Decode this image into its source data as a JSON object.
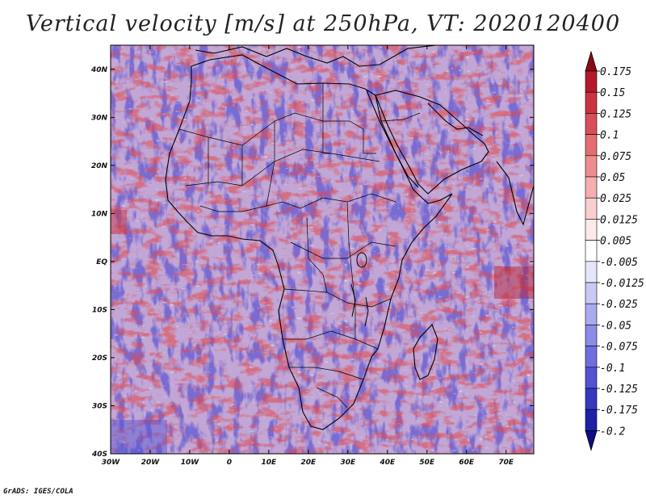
{
  "title": "Vertical velocity [m/s] at 250hPa, VT: 2020120400",
  "credit": "GrADS: IGES/COLA",
  "map": {
    "lon_range": [
      -30,
      77
    ],
    "lat_range": [
      -40,
      45
    ],
    "lon_labels": [
      "30W",
      "20W",
      "10W",
      "0",
      "10E",
      "20E",
      "30E",
      "40E",
      "50E",
      "60E",
      "70E"
    ],
    "lon_values": [
      -30,
      -20,
      -10,
      0,
      10,
      20,
      30,
      40,
      50,
      60,
      70
    ],
    "lat_labels": [
      "40N",
      "30N",
      "20N",
      "10N",
      "EQ",
      "10S",
      "20S",
      "30S",
      "40S"
    ],
    "lat_values": [
      40,
      30,
      20,
      10,
      0,
      -10,
      -20,
      -30,
      -40
    ]
  },
  "colorbar": {
    "labels": [
      "0.175",
      "0.15",
      "0.125",
      "0.1",
      "0.075",
      "0.05",
      "0.025",
      "0.0125",
      "0.005",
      "-0.005",
      "-0.0125",
      "-0.025",
      "-0.05",
      "-0.075",
      "-0.1",
      "-0.125",
      "-0.175",
      "-0.2"
    ],
    "colors": [
      "#8b0a14",
      "#b5192a",
      "#c9333f",
      "#d94f58",
      "#e56e72",
      "#ee8d8f",
      "#f4aeae",
      "#f9cece",
      "#fde9e9",
      "#ffffff",
      "#e6e6fb",
      "#c9c9f5",
      "#aaaaef",
      "#8b8be8",
      "#6e6edf",
      "#5252d2",
      "#3737bf",
      "#2020a6",
      "#120c85"
    ]
  }
}
